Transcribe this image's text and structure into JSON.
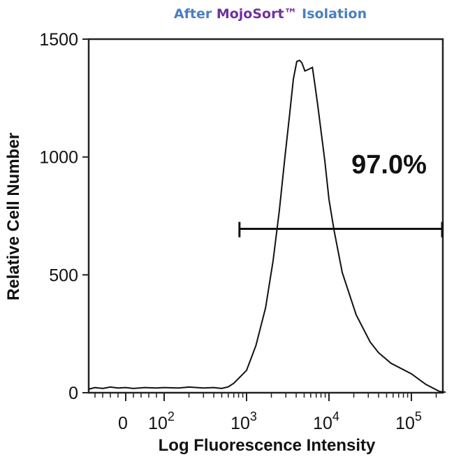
{
  "chart_data": {
    "type": "line",
    "subtype": "flow-cytometry-histogram",
    "title_parts": [
      {
        "text": "After ",
        "color": "#4a7fc0"
      },
      {
        "text": "MojoSort™",
        "color": "#7030a0"
      },
      {
        "text": " Isolation",
        "color": "#4a7fc0"
      }
    ],
    "xlabel": "Log Fluorescence Intensity",
    "ylabel": "Relative Cell Number",
    "xscale": "biexponential",
    "xlim": [
      -96,
      260000
    ],
    "ylim": [
      0,
      1500
    ],
    "x_ticks": [
      {
        "value": 0,
        "base": "0",
        "exp": ""
      },
      {
        "value": 100,
        "base": "10",
        "exp": "2"
      },
      {
        "value": 1000,
        "base": "10",
        "exp": "3"
      },
      {
        "value": 10000,
        "base": "10",
        "exp": "4"
      },
      {
        "value": 100000,
        "base": "10",
        "exp": "5"
      }
    ],
    "y_ticks": [
      0,
      500,
      1000,
      1500
    ],
    "series": [
      {
        "name": "histogram",
        "color": "#111111",
        "points": [
          [
            -96,
            15
          ],
          [
            -80,
            22
          ],
          [
            -60,
            18
          ],
          [
            -40,
            24
          ],
          [
            -20,
            20
          ],
          [
            0,
            22
          ],
          [
            20,
            18
          ],
          [
            50,
            22
          ],
          [
            80,
            20
          ],
          [
            100,
            22
          ],
          [
            150,
            20
          ],
          [
            200,
            24
          ],
          [
            300,
            20
          ],
          [
            400,
            22
          ],
          [
            500,
            18
          ],
          [
            600,
            25
          ],
          [
            700,
            40
          ],
          [
            850,
            70
          ],
          [
            1000,
            95
          ],
          [
            1300,
            200
          ],
          [
            1700,
            360
          ],
          [
            2100,
            560
          ],
          [
            2500,
            775
          ],
          [
            2900,
            990
          ],
          [
            3350,
            1190
          ],
          [
            3700,
            1330
          ],
          [
            4070,
            1405
          ],
          [
            4400,
            1410
          ],
          [
            4680,
            1400
          ],
          [
            5100,
            1365
          ],
          [
            5500,
            1370
          ],
          [
            6300,
            1380
          ],
          [
            6800,
            1300
          ],
          [
            7300,
            1220
          ],
          [
            8900,
            985
          ],
          [
            10000,
            820
          ],
          [
            11500,
            690
          ],
          [
            14500,
            510
          ],
          [
            21400,
            330
          ],
          [
            31600,
            215
          ],
          [
            40000,
            170
          ],
          [
            56500,
            125
          ],
          [
            100000,
            80
          ],
          [
            150000,
            35
          ],
          [
            220000,
            5
          ],
          [
            260000,
            2
          ]
        ]
      }
    ],
    "gate": {
      "label": "97.0%",
      "x_start": 820,
      "x_end": 240000,
      "y": 695
    }
  }
}
